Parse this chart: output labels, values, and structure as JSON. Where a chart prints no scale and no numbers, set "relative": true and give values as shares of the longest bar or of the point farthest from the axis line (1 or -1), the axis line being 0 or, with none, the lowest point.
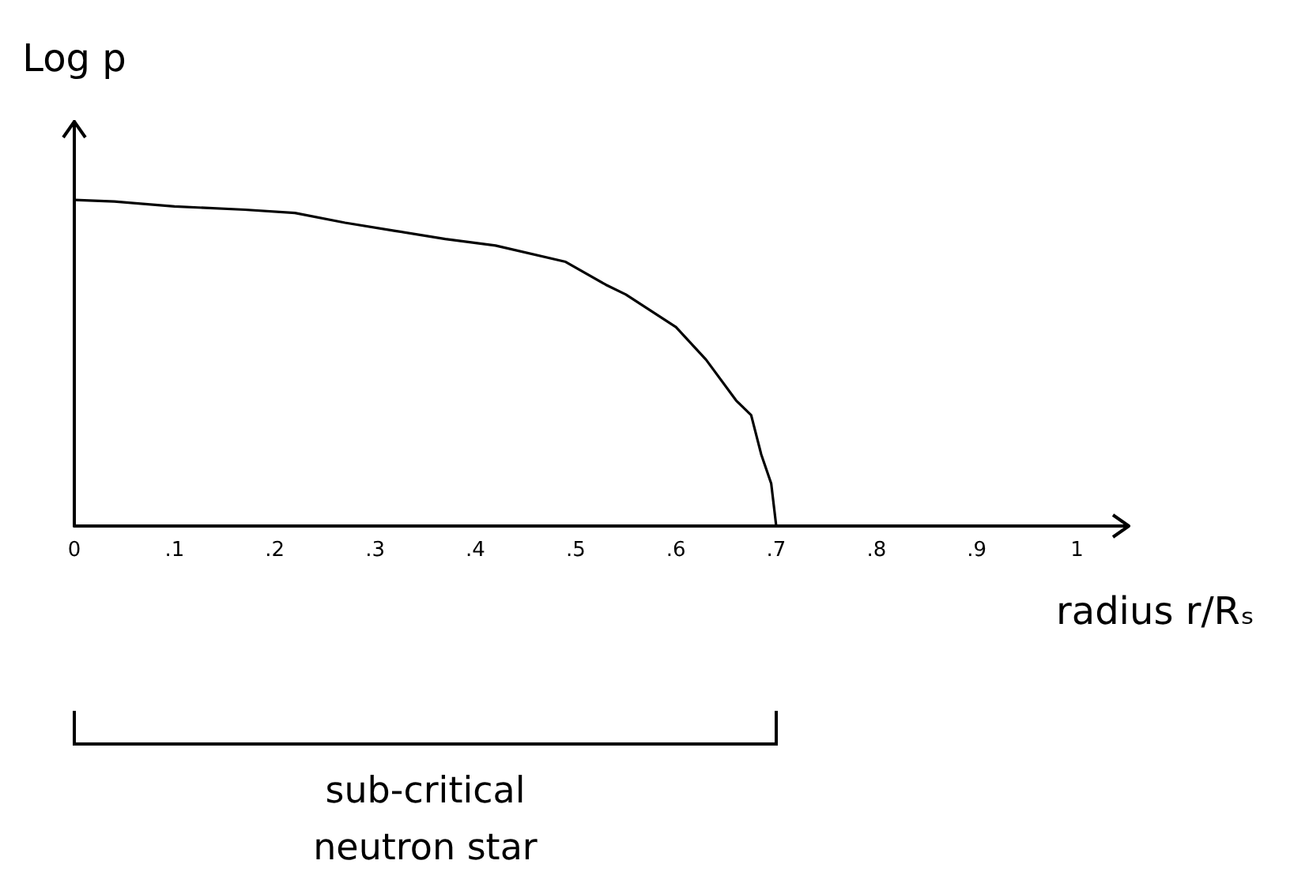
{
  "chart_data": {
    "type": "line",
    "relative": true,
    "xlabel": "radius r/Rₛ",
    "ylabel": "Log p",
    "x": [
      0,
      0.04,
      0.1,
      0.17,
      0.22,
      0.27,
      0.32,
      0.37,
      0.42,
      0.49,
      0.53,
      0.55,
      0.6,
      0.63,
      0.66,
      0.675,
      0.685,
      0.695,
      0.7
    ],
    "values": [
      1,
      0.995,
      0.98,
      0.97,
      0.96,
      0.93,
      0.905,
      0.88,
      0.86,
      0.81,
      0.74,
      0.71,
      0.61,
      0.51,
      0.385,
      0.34,
      0.22,
      0.13,
      0
    ],
    "color": "#000000",
    "xlim": [
      0,
      1.05
    ],
    "xticks": [
      0,
      {
        "value": 0.1,
        "label": ".1"
      },
      {
        "value": 0.2,
        "label": ".2"
      },
      {
        "value": 0.3,
        "label": ".3"
      },
      {
        "value": 0.4,
        "label": ".4"
      },
      {
        "value": 0.5,
        "label": ".5"
      },
      {
        "value": 0.6,
        "label": ".6"
      },
      {
        "value": 0.7,
        "label": ".7"
      },
      {
        "value": 0.8,
        "label": ".8"
      },
      {
        "value": 0.9,
        "label": ".9"
      },
      1
    ],
    "tick_labels": "x",
    "annotations": [
      "sub-critical neutron star"
    ]
  }
}
